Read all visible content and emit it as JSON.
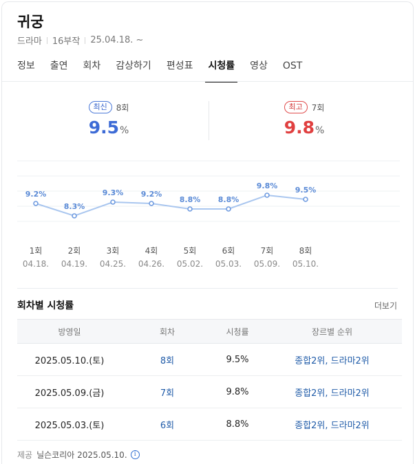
{
  "header": {
    "title": "귀궁",
    "meta": [
      "드라마",
      "16부작",
      "25.04.18. ~"
    ]
  },
  "tabs": [
    {
      "label": "정보"
    },
    {
      "label": "출연"
    },
    {
      "label": "회차"
    },
    {
      "label": "감상하기"
    },
    {
      "label": "편성표"
    },
    {
      "label": "시청률",
      "active": true
    },
    {
      "label": "영상"
    },
    {
      "label": "OST"
    }
  ],
  "summary": {
    "latest": {
      "badge": "최신",
      "episode": "8회",
      "value": "9.5",
      "unit": "%",
      "color": "#3d6bd6"
    },
    "best": {
      "badge": "최고",
      "episode": "7회",
      "value": "9.8",
      "unit": "%",
      "color": "#e04040"
    }
  },
  "chart_data": {
    "type": "line",
    "categories": [
      "1회",
      "2회",
      "3회",
      "4회",
      "5회",
      "6회",
      "7회",
      "8회"
    ],
    "dates": [
      "04.18.",
      "04.19.",
      "04.25.",
      "04.26.",
      "05.02.",
      "05.03.",
      "05.09.",
      "05.10."
    ],
    "values": [
      9.2,
      8.3,
      9.3,
      9.2,
      8.8,
      8.8,
      9.8,
      9.5
    ],
    "labels": [
      "9.2%",
      "8.3%",
      "9.3%",
      "9.2%",
      "8.8%",
      "8.8%",
      "9.8%",
      "9.5%"
    ],
    "line_color": "#a9c6ef",
    "label_color": "#5a8ad6",
    "grid": true
  },
  "table": {
    "title": "회차별 시청률",
    "more": "더보기",
    "columns": [
      "방영일",
      "회차",
      "시청률",
      "장르별 순위"
    ],
    "rows": [
      {
        "date": "2025.05.10.(토)",
        "ep": "8회",
        "rating": "9.5%",
        "rank": "종합2위, 드라마2위"
      },
      {
        "date": "2025.05.09.(금)",
        "ep": "7회",
        "rating": "9.8%",
        "rank": "종합2위, 드라마2위"
      },
      {
        "date": "2025.05.03.(토)",
        "ep": "6회",
        "rating": "8.8%",
        "rank": "종합2위, 드라마2위"
      }
    ]
  },
  "footer": {
    "label": "제공",
    "source": "닐슨코리아 2025.05.10.",
    "icon": "info-icon"
  }
}
